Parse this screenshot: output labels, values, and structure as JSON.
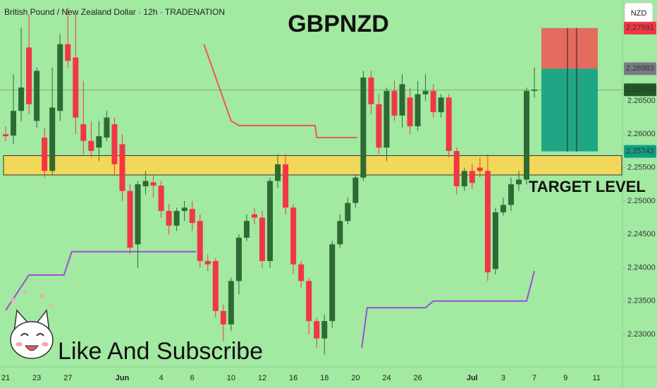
{
  "chart_data": {
    "type": "candlestick",
    "title": "GBPNZD",
    "subtitle": "British Pound / New Zealand Dollar · 12h · TRADENATION",
    "currency": "NZD",
    "annotations": [
      "TARGET LEVEL",
      "Like And Subscribe"
    ],
    "categories": [
      "21",
      null,
      null,
      null,
      "23",
      null,
      null,
      null,
      "27",
      null,
      null,
      null,
      null,
      null,
      null,
      "Jun",
      null,
      null,
      null,
      null,
      "4",
      null,
      null,
      null,
      "6",
      null,
      null,
      null,
      null,
      "10",
      null,
      null,
      null,
      "12",
      null,
      null,
      null,
      "16",
      null,
      null,
      null,
      "18",
      null,
      null,
      null,
      "20",
      null,
      null,
      null,
      "24",
      null,
      null,
      null,
      "26",
      null,
      null,
      null,
      null,
      null,
      null,
      "Jul",
      null,
      null,
      null,
      "3",
      null,
      null,
      null,
      "7",
      null,
      null,
      null,
      "9",
      null,
      null,
      null,
      "11",
      null,
      null,
      null
    ],
    "open": [
      2.26,
      2.2598,
      2.2635,
      2.273,
      2.262,
      2.2595,
      2.2545,
      2.2635,
      2.2735,
      2.2715,
      2.2615,
      2.259,
      2.258,
      2.2595,
      2.2615,
      2.2585,
      2.2515,
      2.2435,
      2.2522,
      2.2528,
      2.2523,
      2.2485,
      2.2463,
      2.2485,
      2.2488,
      2.247,
      2.241,
      2.241,
      2.2335,
      2.2315,
      2.238,
      2.2445,
      2.248,
      2.2475,
      2.241,
      2.253,
      2.2555,
      2.249,
      2.2405,
      2.238,
      2.232,
      2.2294,
      2.232,
      2.2435,
      2.247,
      2.2497,
      2.2535,
      2.2685,
      2.2645,
      2.258,
      2.2665,
      2.2628,
      2.2655,
      2.2612,
      2.266,
      2.2665,
      2.2633,
      2.2655,
      2.2575,
      2.2522,
      2.2545,
      2.255,
      2.2545,
      2.2398,
      2.2483,
      2.2494,
      2.2525,
      2.2532,
      2.2665,
      null,
      null,
      null,
      null,
      null,
      null,
      null,
      null,
      null,
      null,
      null
    ],
    "high": [
      2.2612,
      2.269,
      2.276,
      2.278,
      2.27,
      2.261,
      2.27,
      2.275,
      2.279,
      2.278,
      2.268,
      2.262,
      2.262,
      2.2635,
      2.2625,
      2.26,
      2.2525,
      2.253,
      2.2545,
      2.254,
      2.253,
      2.2495,
      2.249,
      2.25,
      2.25,
      2.248,
      2.242,
      2.2415,
      2.2345,
      2.2385,
      2.245,
      2.248,
      2.249,
      2.2485,
      2.2535,
      2.257,
      2.257,
      2.2495,
      2.241,
      2.2385,
      2.2325,
      2.233,
      2.244,
      2.248,
      2.2505,
      2.254,
      2.2695,
      2.2695,
      2.266,
      2.267,
      2.268,
      2.269,
      2.267,
      2.268,
      2.269,
      2.2675,
      2.266,
      2.266,
      2.258,
      2.255,
      2.2555,
      2.2565,
      2.257,
      2.249,
      2.2505,
      2.2535,
      2.2545,
      2.267,
      2.27,
      null,
      null,
      null,
      null,
      null,
      null,
      null,
      null,
      null,
      null,
      null
    ],
    "low": [
      2.259,
      2.2585,
      2.262,
      2.263,
      2.261,
      2.2535,
      2.254,
      2.262,
      2.27,
      2.26,
      2.257,
      2.2565,
      2.256,
      2.259,
      2.254,
      2.25,
      2.242,
      2.24,
      2.251,
      2.2505,
      2.2475,
      2.245,
      2.2455,
      2.247,
      2.2455,
      2.24,
      2.2395,
      2.2325,
      2.229,
      2.2305,
      2.236,
      2.244,
      2.2465,
      2.24,
      2.24,
      2.252,
      2.248,
      2.239,
      2.237,
      2.23,
      2.228,
      2.227,
      2.231,
      2.243,
      2.2465,
      2.249,
      2.253,
      2.263,
      2.257,
      2.256,
      2.262,
      2.261,
      2.26,
      2.2605,
      2.265,
      2.2625,
      2.2625,
      2.2565,
      2.251,
      2.2515,
      2.2518,
      2.2535,
      2.238,
      2.239,
      2.2478,
      2.2485,
      2.2515,
      2.2525,
      2.2655,
      null,
      null,
      null,
      null,
      null,
      null,
      null,
      null,
      null,
      null,
      null
    ],
    "close": [
      2.2597,
      2.2635,
      2.267,
      2.2645,
      2.2695,
      2.2545,
      2.264,
      2.2735,
      2.271,
      2.2625,
      2.259,
      2.2575,
      2.2597,
      2.2625,
      2.2555,
      2.2515,
      2.243,
      2.2525,
      2.253,
      2.2523,
      2.2485,
      2.2463,
      2.2485,
      2.249,
      2.2467,
      2.241,
      2.2405,
      2.2335,
      2.2315,
      2.238,
      2.2445,
      2.247,
      2.2475,
      2.241,
      2.253,
      2.2555,
      2.249,
      2.2405,
      2.238,
      2.232,
      2.2294,
      2.232,
      2.2435,
      2.247,
      2.2497,
      2.2535,
      2.2685,
      2.2645,
      2.258,
      2.2665,
      2.2628,
      2.2675,
      2.2612,
      2.266,
      2.2665,
      2.2633,
      2.2655,
      2.2575,
      2.2522,
      2.2545,
      2.2527,
      2.2545,
      2.2393,
      2.2483,
      2.2494,
      2.2525,
      2.2532,
      2.2665,
      2.2667,
      null,
      null,
      null,
      null,
      null,
      null,
      null,
      null,
      null,
      null,
      null
    ],
    "up_color": "#2d6a35",
    "down_color": "#f23645",
    "ylim": [
      2.22514,
      2.28012
    ],
    "yticks": [
      {
        "value": 2.23,
        "label": "2.23000"
      },
      {
        "value": 2.235,
        "label": "2.23500"
      },
      {
        "value": 2.24,
        "label": "2.24000"
      },
      {
        "value": 2.245,
        "label": "2.24500"
      },
      {
        "value": 2.25,
        "label": "2.25000"
      },
      {
        "value": 2.255,
        "label": "2.25500"
      },
      {
        "value": 2.26,
        "label": "2.26000"
      },
      {
        "value": 2.265,
        "label": "2.26500"
      }
    ],
    "lines": [
      {
        "color": "#f2545b",
        "x": [
          25.5,
          29,
          30,
          39.8,
          40,
          45.2
        ],
        "y": [
          2.2735,
          2.262,
          2.2613,
          2.2613,
          2.2595,
          2.2595
        ]
      },
      {
        "color": "#9b4fd6",
        "x": [
          0,
          3,
          7.5,
          8.5,
          24.5
        ],
        "y": [
          2.2336,
          2.2389,
          2.2389,
          2.2424,
          2.2424
        ]
      },
      {
        "color": "#9b4fd6",
        "x": [
          45.8,
          46.5,
          54,
          55,
          67,
          68
        ],
        "y": [
          2.228,
          2.234,
          2.234,
          2.235,
          2.235,
          2.2395
        ]
      }
    ],
    "zone": [
      2.2539,
      2.2568
    ],
    "zone_color": "#ffd54f",
    "last": 2.26666,
    "position": {
      "stop": 2.27591,
      "entry": 2.26983,
      "target": 2.25743
    }
  }
}
